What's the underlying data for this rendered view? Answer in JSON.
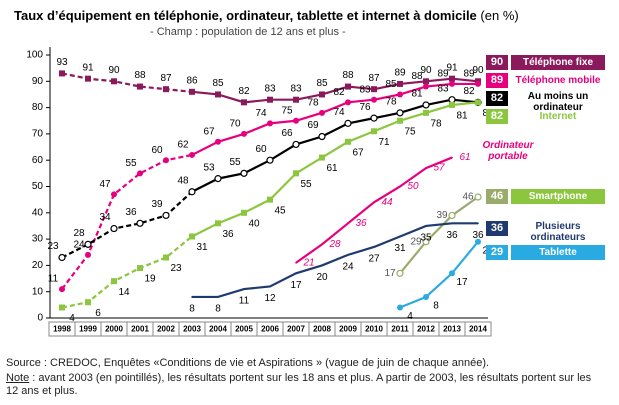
{
  "chart_data": {
    "type": "line",
    "title": "Taux d’équipement en téléphonie, ordinateur, tablette et internet à domicile",
    "title_unit": "(en %)",
    "subtitle": "- Champ : population de 12 ans et plus -",
    "categories": [
      "1998",
      "1999",
      "2000",
      "2001",
      "2002",
      "2003",
      "2004",
      "2005",
      "2006",
      "2007",
      "2008",
      "2009",
      "2010",
      "2011",
      "2012",
      "2013",
      "2014"
    ],
    "ylim": [
      0,
      100
    ],
    "yticks": [
      0,
      10,
      20,
      30,
      40,
      50,
      60,
      70,
      80,
      90,
      100
    ],
    "grid": false,
    "series": [
      {
        "name": "Téléphone fixe",
        "color": "#8b1a5c",
        "marker": "square",
        "values": [
          93,
          91,
          90,
          88,
          87,
          86,
          85,
          82,
          83,
          83,
          85,
          88,
          87,
          89,
          90,
          91,
          90
        ]
      },
      {
        "name": "Téléphone mobile",
        "color": "#e6007e",
        "marker": "circle",
        "values": [
          11,
          24,
          47,
          55,
          60,
          62,
          67,
          70,
          74,
          75,
          78,
          82,
          83,
          85,
          88,
          89,
          89
        ]
      },
      {
        "name": "Au moins un ordinateur",
        "color": "#000000",
        "marker": "open-circle",
        "values": [
          23,
          28,
          34,
          36,
          39,
          48,
          53,
          55,
          60,
          66,
          69,
          74,
          76,
          78,
          81,
          83,
          82
        ]
      },
      {
        "name": "Internet",
        "color": "#8cc63f",
        "marker": "square",
        "values": [
          4,
          6,
          14,
          19,
          23,
          31,
          36,
          40,
          45,
          55,
          61,
          67,
          71,
          75,
          78,
          81,
          82
        ]
      },
      {
        "name": "Ordinateur portable",
        "color": "#e6007e",
        "marker": "none",
        "values": [
          null,
          null,
          null,
          null,
          null,
          null,
          null,
          null,
          null,
          21,
          28,
          36,
          44,
          50,
          57,
          61,
          null
        ]
      },
      {
        "name": "Smartphone",
        "color": "#9aab6b",
        "marker": "open-circle",
        "values": [
          null,
          null,
          null,
          null,
          null,
          null,
          null,
          null,
          null,
          null,
          null,
          null,
          null,
          17,
          29,
          39,
          46
        ]
      },
      {
        "name": "Plusieurs ordinateurs",
        "color": "#1f3a6e",
        "marker": "none",
        "values": [
          null,
          null,
          null,
          null,
          null,
          8,
          8,
          11,
          12,
          17,
          20,
          24,
          27,
          31,
          35,
          36,
          36
        ]
      },
      {
        "name": "Tablette",
        "color": "#29abe2",
        "marker": "circle",
        "values": [
          null,
          null,
          null,
          null,
          null,
          null,
          null,
          null,
          null,
          null,
          null,
          null,
          null,
          4,
          8,
          17,
          29
        ]
      }
    ],
    "source": "Source : CREDOC, Enquêtes «Conditions de vie et Aspirations » (vague de juin de chaque année).",
    "note_label": "Note",
    "note": " : avant 2003 (en pointillés), les résultats portent sur les 18 ans et plus. A partir de 2003, les résultats portent sur les 12 ans et plus."
  }
}
